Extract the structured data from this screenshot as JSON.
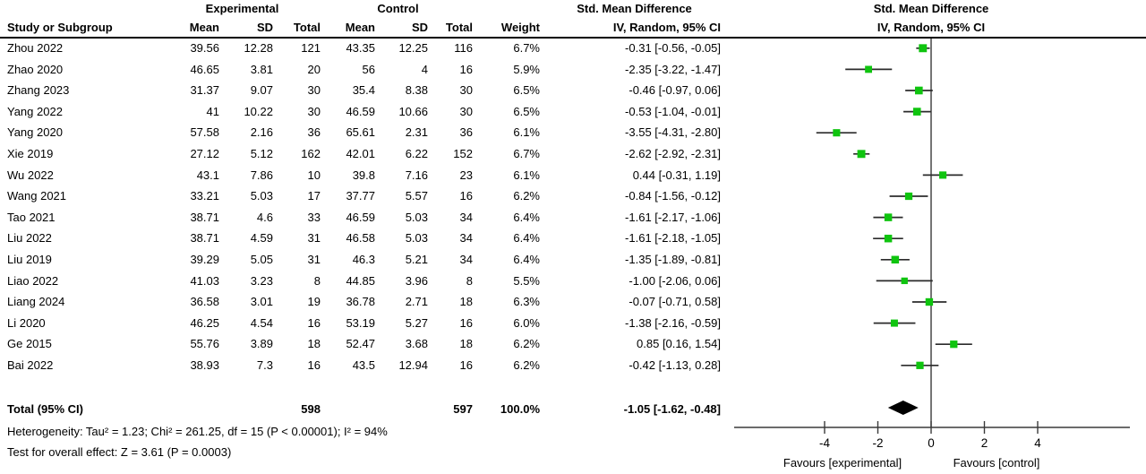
{
  "headers": {
    "group_experimental": "Experimental",
    "group_control": "Control",
    "smd_left": "Std. Mean Difference",
    "smd_right": "Std. Mean Difference",
    "study": "Study or Subgroup",
    "mean": "Mean",
    "sd": "SD",
    "total": "Total",
    "weight": "Weight",
    "method_left": "IV, Random, 95% CI",
    "method_right": "IV, Random, 95% CI"
  },
  "chart_data": {
    "type": "forest",
    "effect_measure": "Std. Mean Difference",
    "method": "IV, Random, 95% CI",
    "x_ticks": [
      -4,
      -2,
      0,
      2,
      4
    ],
    "x_range": [
      -7.4,
      7.5
    ],
    "marker_color": "#0fc40f",
    "line_color": "#2b2b2b",
    "diamond_color": "#000000",
    "studies": [
      {
        "name": "Zhou 2022",
        "mean_e": "39.56",
        "sd_e": "12.28",
        "n_e": "121",
        "mean_c": "43.35",
        "sd_c": "12.25",
        "n_c": "116",
        "weight": "6.7%",
        "ci_label": "-0.31 [-0.56, -0.05]",
        "est": -0.31,
        "lo": -0.56,
        "hi": -0.05
      },
      {
        "name": "Zhao 2020",
        "mean_e": "46.65",
        "sd_e": "3.81",
        "n_e": "20",
        "mean_c": "56",
        "sd_c": "4",
        "n_c": "16",
        "weight": "5.9%",
        "ci_label": "-2.35 [-3.22, -1.47]",
        "est": -2.35,
        "lo": -3.22,
        "hi": -1.47
      },
      {
        "name": "Zhang 2023",
        "mean_e": "31.37",
        "sd_e": "9.07",
        "n_e": "30",
        "mean_c": "35.4",
        "sd_c": "8.38",
        "n_c": "30",
        "weight": "6.5%",
        "ci_label": "-0.46 [-0.97, 0.06]",
        "est": -0.46,
        "lo": -0.97,
        "hi": 0.06
      },
      {
        "name": "Yang 2022",
        "mean_e": "41",
        "sd_e": "10.22",
        "n_e": "30",
        "mean_c": "46.59",
        "sd_c": "10.66",
        "n_c": "30",
        "weight": "6.5%",
        "ci_label": "-0.53 [-1.04, -0.01]",
        "est": -0.53,
        "lo": -1.04,
        "hi": -0.01
      },
      {
        "name": "Yang 2020",
        "mean_e": "57.58",
        "sd_e": "2.16",
        "n_e": "36",
        "mean_c": "65.61",
        "sd_c": "2.31",
        "n_c": "36",
        "weight": "6.1%",
        "ci_label": "-3.55 [-4.31, -2.80]",
        "est": -3.55,
        "lo": -4.31,
        "hi": -2.8
      },
      {
        "name": "Xie 2019",
        "mean_e": "27.12",
        "sd_e": "5.12",
        "n_e": "162",
        "mean_c": "42.01",
        "sd_c": "6.22",
        "n_c": "152",
        "weight": "6.7%",
        "ci_label": "-2.62 [-2.92, -2.31]",
        "est": -2.62,
        "lo": -2.92,
        "hi": -2.31
      },
      {
        "name": "Wu 2022",
        "mean_e": "43.1",
        "sd_e": "7.86",
        "n_e": "10",
        "mean_c": "39.8",
        "sd_c": "7.16",
        "n_c": "23",
        "weight": "6.1%",
        "ci_label": "0.44 [-0.31, 1.19]",
        "est": 0.44,
        "lo": -0.31,
        "hi": 1.19
      },
      {
        "name": "Wang 2021",
        "mean_e": "33.21",
        "sd_e": "5.03",
        "n_e": "17",
        "mean_c": "37.77",
        "sd_c": "5.57",
        "n_c": "16",
        "weight": "6.2%",
        "ci_label": "-0.84 [-1.56, -0.12]",
        "est": -0.84,
        "lo": -1.56,
        "hi": -0.12
      },
      {
        "name": "Tao 2021",
        "mean_e": "38.71",
        "sd_e": "4.6",
        "n_e": "33",
        "mean_c": "46.59",
        "sd_c": "5.03",
        "n_c": "34",
        "weight": "6.4%",
        "ci_label": "-1.61 [-2.17, -1.06]",
        "est": -1.61,
        "lo": -2.17,
        "hi": -1.06
      },
      {
        "name": "Liu 2022",
        "mean_e": "38.71",
        "sd_e": "4.59",
        "n_e": "31",
        "mean_c": "46.58",
        "sd_c": "5.03",
        "n_c": "34",
        "weight": "6.4%",
        "ci_label": "-1.61 [-2.18, -1.05]",
        "est": -1.61,
        "lo": -2.18,
        "hi": -1.05
      },
      {
        "name": "Liu 2019",
        "mean_e": "39.29",
        "sd_e": "5.05",
        "n_e": "31",
        "mean_c": "46.3",
        "sd_c": "5.21",
        "n_c": "34",
        "weight": "6.4%",
        "ci_label": "-1.35 [-1.89, -0.81]",
        "est": -1.35,
        "lo": -1.89,
        "hi": -0.81
      },
      {
        "name": "Liao 2022",
        "mean_e": "41.03",
        "sd_e": "3.23",
        "n_e": "8",
        "mean_c": "44.85",
        "sd_c": "3.96",
        "n_c": "8",
        "weight": "5.5%",
        "ci_label": "-1.00 [-2.06, 0.06]",
        "est": -1.0,
        "lo": -2.06,
        "hi": 0.06
      },
      {
        "name": "Liang 2024",
        "mean_e": "36.58",
        "sd_e": "3.01",
        "n_e": "19",
        "mean_c": "36.78",
        "sd_c": "2.71",
        "n_c": "18",
        "weight": "6.3%",
        "ci_label": "-0.07 [-0.71, 0.58]",
        "est": -0.07,
        "lo": -0.71,
        "hi": 0.58
      },
      {
        "name": "Li 2020",
        "mean_e": "46.25",
        "sd_e": "4.54",
        "n_e": "16",
        "mean_c": "53.19",
        "sd_c": "5.27",
        "n_c": "16",
        "weight": "6.0%",
        "ci_label": "-1.38 [-2.16, -0.59]",
        "est": -1.38,
        "lo": -2.16,
        "hi": -0.59
      },
      {
        "name": "Ge 2015",
        "mean_e": "55.76",
        "sd_e": "3.89",
        "n_e": "18",
        "mean_c": "52.47",
        "sd_c": "3.68",
        "n_c": "18",
        "weight": "6.2%",
        "ci_label": "0.85 [0.16, 1.54]",
        "est": 0.85,
        "lo": 0.16,
        "hi": 1.54
      },
      {
        "name": "Bai 2022",
        "mean_e": "38.93",
        "sd_e": "7.3",
        "n_e": "16",
        "mean_c": "43.5",
        "sd_c": "12.94",
        "n_c": "16",
        "weight": "6.2%",
        "ci_label": "-0.42 [-1.13, 0.28]",
        "est": -0.42,
        "lo": -1.13,
        "hi": 0.28
      }
    ],
    "total": {
      "label": "Total (95% CI)",
      "n_e": "598",
      "n_c": "597",
      "weight": "100.0%",
      "ci_label": "-1.05 [-1.62, -0.48]",
      "est": -1.05,
      "lo": -1.62,
      "hi": -0.48
    }
  },
  "footer": {
    "heterogeneity": "Heterogeneity: Tau² = 1.23; Chi² = 261.25, df = 15 (P < 0.00001); I² = 94%",
    "overall_effect": "Test for overall effect: Z = 3.61 (P = 0.0003)"
  },
  "axis_labels": {
    "favours_left": "Favours [experimental]",
    "favours_right": "Favours [control]"
  }
}
